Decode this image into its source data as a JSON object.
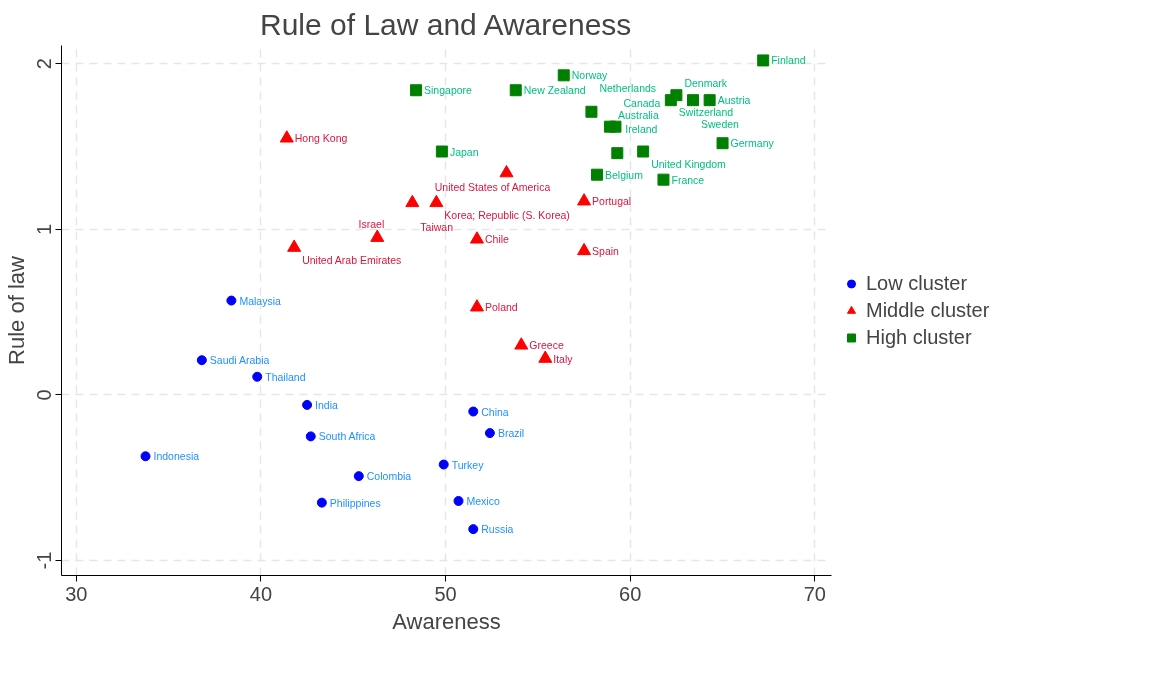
{
  "chart_data": {
    "type": "scatter",
    "title": "Rule of Law and Awareness",
    "xlabel": "Awareness",
    "ylabel": "Rule of law",
    "xlim": [
      29.2,
      70.9
    ],
    "ylim": [
      -1.09,
      2.11
    ],
    "xticks": [
      30,
      40,
      50,
      60,
      70
    ],
    "yticks": [
      -1,
      0,
      1,
      2
    ],
    "grid": true,
    "legend": "right",
    "series": [
      {
        "name": "Low cluster",
        "color": "#0000ff",
        "marker": "circle",
        "x": [
          38.4,
          36.8,
          39.8,
          42.5,
          42.7,
          33.75,
          45.3,
          43.3,
          51.5,
          52.4,
          49.9,
          50.7,
          51.5
        ],
        "values": [
          0.57,
          0.21,
          0.11,
          -0.06,
          -0.25,
          -0.37,
          -0.49,
          -0.65,
          -0.1,
          -0.23,
          -0.42,
          -0.64,
          -0.81
        ]
      },
      {
        "name": "Middle cluster",
        "color": "#ff0000",
        "marker": "triangle",
        "x": [
          41.4,
          48.2,
          49.5,
          53.3,
          57.5,
          46.3,
          41.8,
          51.7,
          57.5,
          51.7,
          54.1,
          55.4
        ],
        "values": [
          1.55,
          1.16,
          1.16,
          1.34,
          1.17,
          0.95,
          0.89,
          0.94,
          0.87,
          0.53,
          0.3,
          0.22
        ]
      },
      {
        "name": "High cluster",
        "color": "#008000",
        "marker": "square",
        "x": [
          67.2,
          56.4,
          48.4,
          53.8,
          57.9,
          62.5,
          62.2,
          63.4,
          64.3,
          58.9,
          59.2,
          49.8,
          59.3,
          60.7,
          65.0,
          58.2,
          61.8
        ],
        "values": [
          2.02,
          1.93,
          1.84,
          1.84,
          1.71,
          1.81,
          1.78,
          1.78,
          1.78,
          1.62,
          1.62,
          1.47,
          1.46,
          1.47,
          1.52,
          1.33,
          1.3
        ]
      }
    ],
    "annotations": [
      {
        "text": "Malaysia",
        "x": 38.4,
        "y": 0.57
      },
      {
        "text": "Saudi Arabia",
        "x": 36.8,
        "y": 0.21
      },
      {
        "text": "Thailand",
        "x": 39.8,
        "y": 0.11
      },
      {
        "text": "India",
        "x": 42.5,
        "y": -0.06
      },
      {
        "text": "South Africa",
        "x": 42.7,
        "y": -0.25
      },
      {
        "text": "Indonesia",
        "x": 33.75,
        "y": -0.37
      },
      {
        "text": "Colombia",
        "x": 45.3,
        "y": -0.49
      },
      {
        "text": "Philippines",
        "x": 43.3,
        "y": -0.65
      },
      {
        "text": "China",
        "x": 51.5,
        "y": -0.1
      },
      {
        "text": "Brazil",
        "x": 52.4,
        "y": -0.23
      },
      {
        "text": "Turkey",
        "x": 49.9,
        "y": -0.42
      },
      {
        "text": "Mexico",
        "x": 50.7,
        "y": -0.64
      },
      {
        "text": "Russia",
        "x": 51.5,
        "y": -0.81
      },
      {
        "text": "Hong Kong",
        "x": 41.4,
        "y": 1.55
      },
      {
        "text": "Taiwan",
        "x": 48.2,
        "y": 1.16
      },
      {
        "text": "Korea; Republic (S. Korea)",
        "x": 49.5,
        "y": 1.16
      },
      {
        "text": "United States of America",
        "x": 53.3,
        "y": 1.34
      },
      {
        "text": "Portugal",
        "x": 57.5,
        "y": 1.17
      },
      {
        "text": "Israel",
        "x": 46.3,
        "y": 0.95
      },
      {
        "text": "United Arab Emirates",
        "x": 41.8,
        "y": 0.89
      },
      {
        "text": "Chile",
        "x": 51.7,
        "y": 0.94
      },
      {
        "text": "Spain",
        "x": 57.5,
        "y": 0.87
      },
      {
        "text": "Poland",
        "x": 51.7,
        "y": 0.53
      },
      {
        "text": "Greece",
        "x": 54.1,
        "y": 0.3
      },
      {
        "text": "Italy",
        "x": 55.4,
        "y": 0.22
      },
      {
        "text": "Finland",
        "x": 67.2,
        "y": 2.02
      },
      {
        "text": "Norway",
        "x": 56.4,
        "y": 1.93
      },
      {
        "text": "Singapore",
        "x": 48.4,
        "y": 1.84
      },
      {
        "text": "New Zealand",
        "x": 53.8,
        "y": 1.84
      },
      {
        "text": "Netherlands",
        "x": 57.9,
        "y": 1.71
      },
      {
        "text": "Denmark",
        "x": 62.5,
        "y": 1.81
      },
      {
        "text": "Switzerland",
        "x": 62.2,
        "y": 1.78
      },
      {
        "text": "Sweden",
        "x": 63.4,
        "y": 1.78
      },
      {
        "text": "Austria",
        "x": 64.3,
        "y": 1.78
      },
      {
        "text": "Australia",
        "x": 58.9,
        "y": 1.62
      },
      {
        "text": "Canada",
        "x": 59.2,
        "y": 1.62
      },
      {
        "text": "Japan",
        "x": 49.8,
        "y": 1.47
      },
      {
        "text": "Ireland",
        "x": 59.3,
        "y": 1.46
      },
      {
        "text": "United Kingdom",
        "x": 60.7,
        "y": 1.47
      },
      {
        "text": "Germany",
        "x": 65.0,
        "y": 1.52
      },
      {
        "text": "Belgium",
        "x": 58.2,
        "y": 1.33
      },
      {
        "text": "France",
        "x": 61.8,
        "y": 1.3
      }
    ]
  }
}
